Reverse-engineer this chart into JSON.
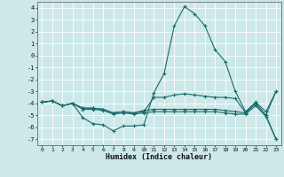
{
  "title": "",
  "xlabel": "Humidex (Indice chaleur)",
  "background_color": "#cce8e8",
  "grid_color": "#ffffff",
  "line_color": "#1a6b6b",
  "x": [
    0,
    1,
    2,
    3,
    4,
    5,
    6,
    7,
    8,
    9,
    10,
    11,
    12,
    13,
    14,
    15,
    16,
    17,
    18,
    19,
    20,
    21,
    22,
    23
  ],
  "series": [
    [
      -3.9,
      -3.8,
      -4.2,
      -4.0,
      -5.2,
      -5.7,
      -5.8,
      -6.3,
      -5.9,
      -5.9,
      -5.8,
      -3.1,
      -1.5,
      2.5,
      4.1,
      3.5,
      2.5,
      0.5,
      -0.5,
      -3.0,
      -4.7,
      -3.9,
      -4.7,
      -3.0
    ],
    [
      -3.9,
      -3.8,
      -4.2,
      -4.0,
      -4.4,
      -4.4,
      -4.5,
      -4.8,
      -4.7,
      -4.8,
      -4.7,
      -3.5,
      -3.5,
      -3.3,
      -3.2,
      -3.3,
      -3.4,
      -3.5,
      -3.5,
      -3.6,
      -4.8,
      -4.0,
      -5.0,
      -3.0
    ],
    [
      -3.9,
      -3.8,
      -4.2,
      -4.0,
      -4.4,
      -4.4,
      -4.5,
      -4.8,
      -4.7,
      -4.8,
      -4.6,
      -4.5,
      -4.5,
      -4.5,
      -4.5,
      -4.5,
      -4.5,
      -4.5,
      -4.6,
      -4.7,
      -4.8,
      -4.0,
      -5.0,
      -7.0
    ],
    [
      -3.9,
      -3.8,
      -4.2,
      -4.0,
      -4.5,
      -4.5,
      -4.6,
      -4.9,
      -4.8,
      -4.9,
      -4.8,
      -4.7,
      -4.7,
      -4.7,
      -4.7,
      -4.7,
      -4.7,
      -4.7,
      -4.8,
      -4.9,
      -4.9,
      -4.2,
      -5.1,
      -7.0
    ]
  ],
  "ylim": [
    -7.5,
    4.5
  ],
  "yticks": [
    4,
    3,
    2,
    1,
    0,
    -1,
    -2,
    -3,
    -4,
    -5,
    -6,
    -7
  ],
  "xlim": [
    -0.5,
    23.5
  ],
  "xticks": [
    0,
    1,
    2,
    3,
    4,
    5,
    6,
    7,
    8,
    9,
    10,
    11,
    12,
    13,
    14,
    15,
    16,
    17,
    18,
    19,
    20,
    21,
    22,
    23
  ]
}
